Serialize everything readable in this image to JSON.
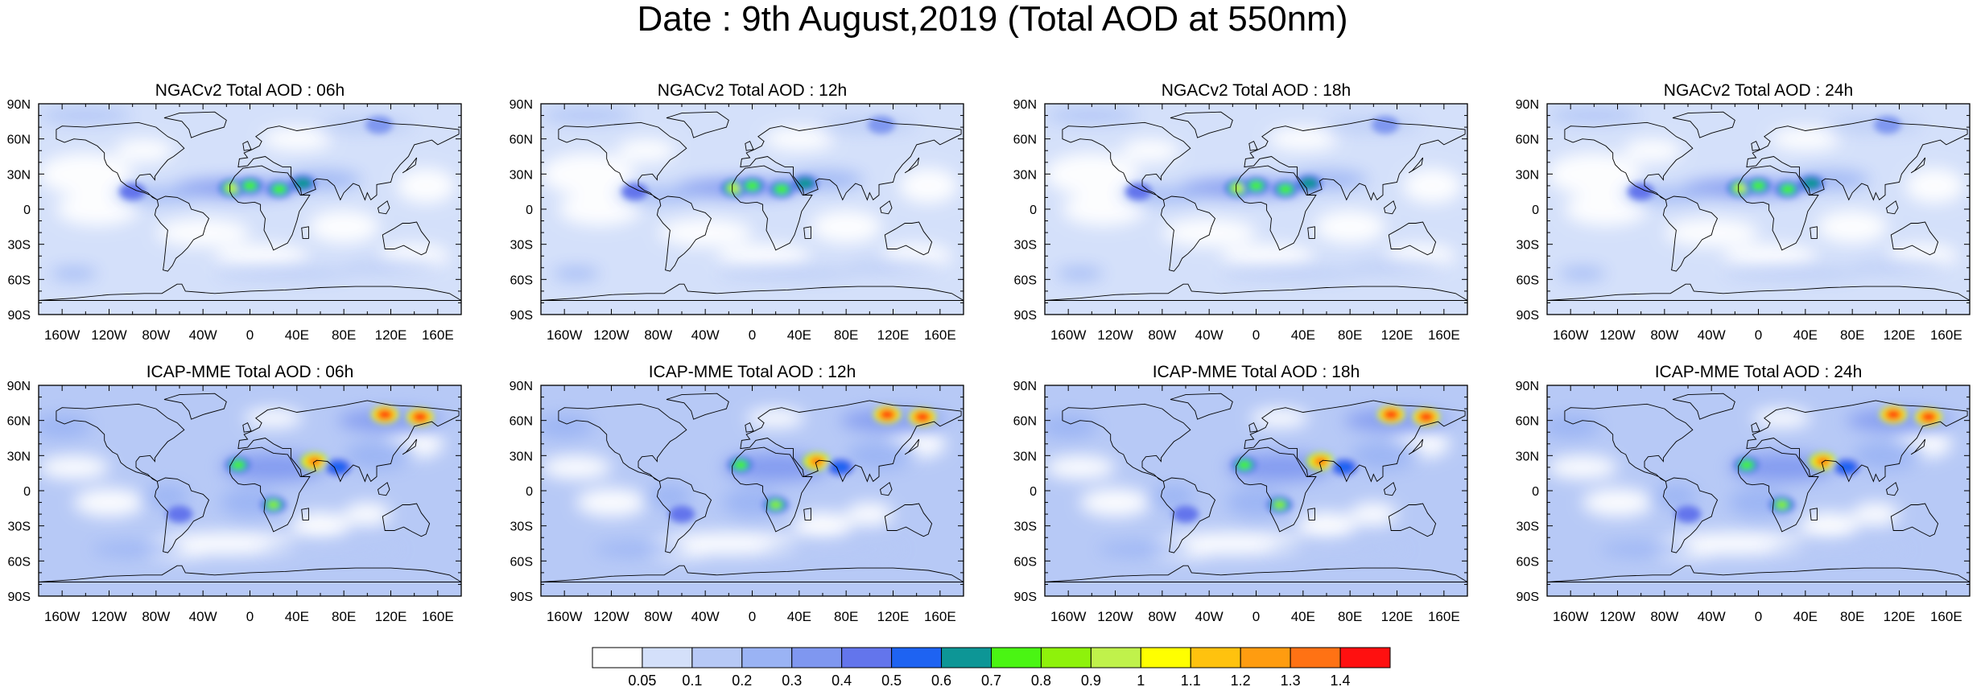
{
  "title": "Date : 9th August,2019 (Total AOD at 550nm)",
  "panels": [
    {
      "title": "NGACv2 Total AOD : 06h",
      "model": "NGACv2",
      "hour": "06h"
    },
    {
      "title": "NGACv2 Total AOD : 12h",
      "model": "NGACv2",
      "hour": "12h"
    },
    {
      "title": "NGACv2 Total AOD : 18h",
      "model": "NGACv2",
      "hour": "18h"
    },
    {
      "title": "NGACv2 Total AOD : 24h",
      "model": "NGACv2",
      "hour": "24h"
    },
    {
      "title": "ICAP-MME Total AOD : 06h",
      "model": "ICAP-MME",
      "hour": "06h"
    },
    {
      "title": "ICAP-MME Total AOD : 12h",
      "model": "ICAP-MME",
      "hour": "12h"
    },
    {
      "title": "ICAP-MME Total AOD : 18h",
      "model": "ICAP-MME",
      "hour": "18h"
    },
    {
      "title": "ICAP-MME Total AOD : 24h",
      "model": "ICAP-MME",
      "hour": "24h"
    }
  ],
  "lon_ticks": [
    "160W",
    "120W",
    "80W",
    "40W",
    "0",
    "40E",
    "80E",
    "120E",
    "160E"
  ],
  "lat_ticks": [
    "90N",
    "60N",
    "30N",
    "0",
    "30S",
    "60S",
    "90S"
  ],
  "colorbar": {
    "labels": [
      "0.05",
      "0.1",
      "0.2",
      "0.3",
      "0.4",
      "0.5",
      "0.6",
      "0.7",
      "0.8",
      "0.9",
      "1",
      "1.1",
      "1.2",
      "1.3",
      "1.4"
    ],
    "colors": [
      "#ffffff",
      "#d4e0fa",
      "#b7c9f6",
      "#9ab3f4",
      "#7f97f0",
      "#6375ec",
      "#1e63f2",
      "#0d9696",
      "#4af513",
      "#8ef20b",
      "#c0f24b",
      "#ffff00",
      "#ffc20e",
      "#ff9c10",
      "#ff7214",
      "#ff1010"
    ]
  },
  "hotspots": {
    "ngac": [
      {
        "lon": -15,
        "lat": 18,
        "level": 10
      },
      {
        "lon": 0,
        "lat": 20,
        "level": 8
      },
      {
        "lon": 25,
        "lat": 17,
        "level": 8
      },
      {
        "lon": 45,
        "lat": 22,
        "level": 7
      },
      {
        "lon": -100,
        "lat": 15,
        "level": 5
      },
      {
        "lon": 110,
        "lat": 72,
        "level": 4
      },
      {
        "lon": -120,
        "lat": -55,
        "level": 3
      }
    ],
    "icap": [
      {
        "lon": 115,
        "lat": 65,
        "level": 15
      },
      {
        "lon": 145,
        "lat": 63,
        "level": 15
      },
      {
        "lon": 55,
        "lat": 25,
        "level": 14
      },
      {
        "lon": 20,
        "lat": -12,
        "level": 9
      },
      {
        "lon": -10,
        "lat": 22,
        "level": 8
      },
      {
        "lon": 75,
        "lat": 20,
        "level": 6
      },
      {
        "lon": -60,
        "lat": -20,
        "level": 5
      }
    ]
  }
}
